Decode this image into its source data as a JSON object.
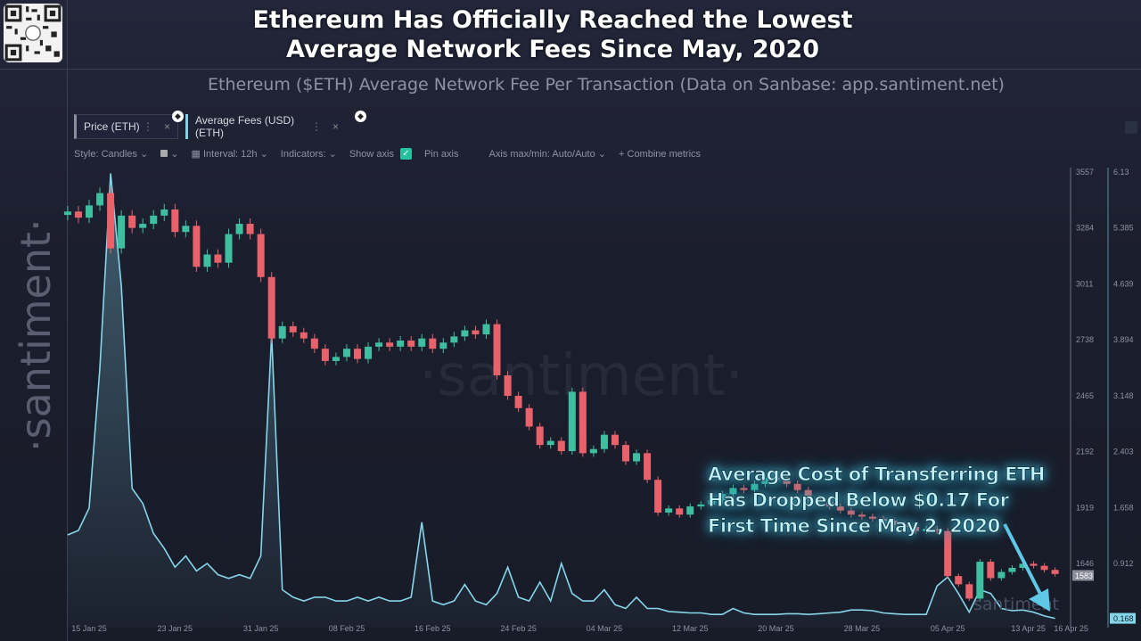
{
  "header": {
    "title_line1": "Ethereum Has Officially Reached the Lowest",
    "title_line2": "Average Network Fees Since May, 2020",
    "subtitle": "Ethereum ($ETH) Average Network Fee Per Transaction (Data on Sanbase: app.santiment.net)"
  },
  "watermark": "·santiment·",
  "watermark_center": "·santiment·",
  "watermark_corner": "santiment",
  "metrics": [
    {
      "label": "Price (ETH)",
      "more": "⋮",
      "close": "×",
      "badge": "ethereum-icon"
    },
    {
      "label": "Average Fees (USD) (ETH)",
      "more": "⋮",
      "close": "×",
      "badge": "ethereum-icon"
    }
  ],
  "toolbar": {
    "style": "Style: Candles",
    "interval": "Interval: 12h",
    "indicators": "Indicators:",
    "show_axis": "Show axis",
    "show_axis_checked": true,
    "pin_axis": "Pin axis",
    "axis_maxmin": "Axis max/min: Auto/Auto",
    "combine": "Combine metrics"
  },
  "annotation": {
    "line1": "Average Cost of Transferring ETH",
    "line2": "Has Dropped Below $0.17 For",
    "line3": "First Time Since May 2, 2020"
  },
  "colors": {
    "up": "#3fbf9f",
    "down": "#e8626b",
    "fees": "#86d6ea",
    "arrow": "#5fc8e6"
  },
  "chart_data": {
    "type": "candlestick+line",
    "x_tick_labels": [
      "15 Jan 25",
      "23 Jan 25",
      "31 Jan 25",
      "08 Feb 25",
      "16 Feb 25",
      "24 Feb 25",
      "04 Mar 25",
      "12 Mar 25",
      "20 Mar 25",
      "28 Mar 25",
      "05 Apr 25",
      "13 Apr 25",
      "16 Apr 25"
    ],
    "x_tick_dates": [
      "2025-01-15",
      "2025-01-23",
      "2025-01-31",
      "2025-02-08",
      "2025-02-16",
      "2025-02-24",
      "2025-03-04",
      "2025-03-12",
      "2025-03-20",
      "2025-03-28",
      "2025-04-05",
      "2025-04-13",
      "2025-04-16"
    ],
    "price_axis": {
      "ticks": [
        "3557",
        "3284",
        "3011",
        "2738",
        "2465",
        "2192",
        "1919",
        "1646"
      ],
      "range": [
        1646,
        3557
      ],
      "current": "1583"
    },
    "fee_axis": {
      "ticks": [
        "6.13",
        "5.385",
        "4.639",
        "3.894",
        "3.148",
        "2.403",
        "1.658",
        "0.912"
      ],
      "range": [
        0.912,
        6.13
      ],
      "current": "0.168"
    },
    "grid": false,
    "x_dates": [
      "2025-01-13",
      "2025-01-14",
      "2025-01-15",
      "2025-01-16",
      "2025-01-17",
      "2025-01-18",
      "2025-01-19",
      "2025-01-20",
      "2025-01-21",
      "2025-01-22",
      "2025-01-23",
      "2025-01-24",
      "2025-01-25",
      "2025-01-26",
      "2025-01-27",
      "2025-01-28",
      "2025-01-29",
      "2025-01-30",
      "2025-01-31",
      "2025-02-01",
      "2025-02-02",
      "2025-02-03",
      "2025-02-04",
      "2025-02-05",
      "2025-02-06",
      "2025-02-07",
      "2025-02-08",
      "2025-02-09",
      "2025-02-10",
      "2025-02-11",
      "2025-02-12",
      "2025-02-13",
      "2025-02-14",
      "2025-02-15",
      "2025-02-16",
      "2025-02-17",
      "2025-02-18",
      "2025-02-19",
      "2025-02-20",
      "2025-02-21",
      "2025-02-22",
      "2025-02-23",
      "2025-02-24",
      "2025-02-25",
      "2025-02-26",
      "2025-02-27",
      "2025-02-28",
      "2025-03-01",
      "2025-03-02",
      "2025-03-03",
      "2025-03-04",
      "2025-03-05",
      "2025-03-06",
      "2025-03-07",
      "2025-03-08",
      "2025-03-09",
      "2025-03-10",
      "2025-03-11",
      "2025-03-12",
      "2025-03-13",
      "2025-03-14",
      "2025-03-15",
      "2025-03-16",
      "2025-03-17",
      "2025-03-18",
      "2025-03-19",
      "2025-03-20",
      "2025-03-21",
      "2025-03-22",
      "2025-03-23",
      "2025-03-24",
      "2025-03-25",
      "2025-03-26",
      "2025-03-27",
      "2025-03-28",
      "2025-03-29",
      "2025-03-30",
      "2025-03-31",
      "2025-04-01",
      "2025-04-02",
      "2025-04-03",
      "2025-04-04",
      "2025-04-05",
      "2025-04-06",
      "2025-04-07",
      "2025-04-08",
      "2025-04-09",
      "2025-04-10",
      "2025-04-11",
      "2025-04-12",
      "2025-04-13",
      "2025-04-14",
      "2025-04-15"
    ],
    "series": [
      {
        "name": "Price (ETH)",
        "kind": "candles",
        "close": [
          3360,
          3330,
          3390,
          3450,
          3180,
          3340,
          3280,
          3300,
          3340,
          3370,
          3260,
          3290,
          3090,
          3150,
          3110,
          3250,
          3300,
          3250,
          3040,
          2740,
          2800,
          2770,
          2740,
          2690,
          2630,
          2650,
          2690,
          2640,
          2700,
          2720,
          2700,
          2730,
          2700,
          2740,
          2690,
          2720,
          2750,
          2780,
          2760,
          2810,
          2560,
          2460,
          2400,
          2310,
          2220,
          2240,
          2190,
          2480,
          2180,
          2200,
          2270,
          2220,
          2140,
          2180,
          2050,
          1890,
          1910,
          1880,
          1920,
          1930,
          1950,
          1980,
          2010,
          2000,
          2030,
          2060,
          2050,
          2030,
          2000,
          1960,
          1940,
          1920,
          1900,
          1880,
          1870,
          1860,
          1850,
          1830,
          1820,
          1800,
          1810,
          1800,
          1580,
          1540,
          1470,
          1650,
          1570,
          1600,
          1620,
          1640,
          1630,
          1610,
          1590
        ]
      },
      {
        "name": "Average Fees (USD) (ETH)",
        "kind": "line",
        "values": [
          1.28,
          1.34,
          1.64,
          3.5,
          6.1,
          4.6,
          1.9,
          1.7,
          1.3,
          1.1,
          0.85,
          1.0,
          0.8,
          0.9,
          0.75,
          0.7,
          0.75,
          0.7,
          1.0,
          3.95,
          0.55,
          0.45,
          0.4,
          0.45,
          0.45,
          0.4,
          0.4,
          0.45,
          0.4,
          0.45,
          0.4,
          0.4,
          0.45,
          1.45,
          0.4,
          0.35,
          0.4,
          0.62,
          0.4,
          0.35,
          0.5,
          0.85,
          0.45,
          0.4,
          0.65,
          0.4,
          0.9,
          0.5,
          0.4,
          0.4,
          0.55,
          0.35,
          0.3,
          0.45,
          0.3,
          0.3,
          0.26,
          0.25,
          0.24,
          0.24,
          0.22,
          0.22,
          0.3,
          0.24,
          0.22,
          0.22,
          0.22,
          0.23,
          0.23,
          0.22,
          0.23,
          0.24,
          0.25,
          0.28,
          0.28,
          0.27,
          0.24,
          0.23,
          0.22,
          0.22,
          0.22,
          0.6,
          0.72,
          0.5,
          0.25,
          0.55,
          0.5,
          0.3,
          0.27,
          0.28,
          0.25,
          0.2,
          0.168
        ]
      }
    ]
  }
}
